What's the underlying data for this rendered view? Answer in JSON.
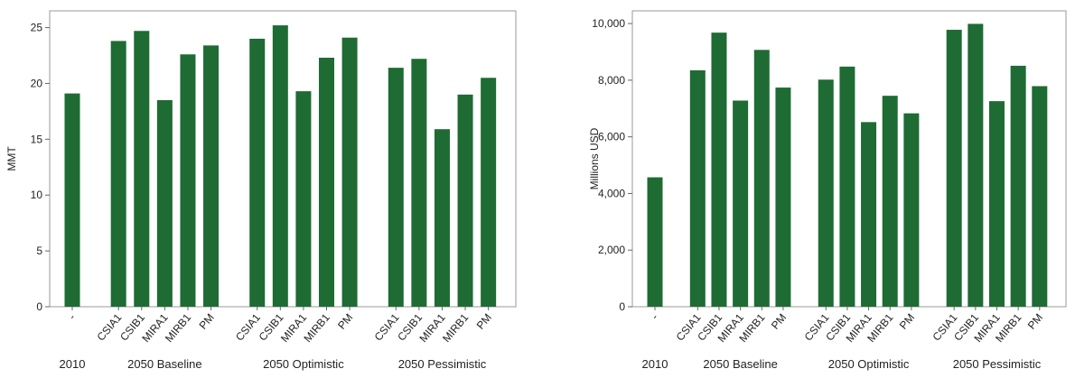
{
  "chart_data": [
    {
      "type": "bar",
      "ylabel": "MMT",
      "color": "#1e6b34",
      "ylim": [
        0,
        26.5
      ],
      "yticks": [
        0,
        5,
        10,
        15,
        20,
        25
      ],
      "groups": [
        {
          "name": "2010",
          "categories": [
            "-"
          ],
          "values": [
            19.1
          ]
        },
        {
          "name": "2050 Baseline",
          "categories": [
            "CSIA1",
            "CSIB1",
            "MIRA1",
            "MIRB1",
            "PM"
          ],
          "values": [
            23.8,
            24.7,
            18.5,
            22.6,
            23.4
          ]
        },
        {
          "name": "2050 Optimistic",
          "categories": [
            "CSIA1",
            "CSIB1",
            "MIRA1",
            "MIRB1",
            "PM"
          ],
          "values": [
            24.0,
            25.2,
            19.3,
            22.3,
            24.1
          ]
        },
        {
          "name": "2050 Pessimistic",
          "categories": [
            "CSIA1",
            "CSIB1",
            "MIRA1",
            "MIRB1",
            "PM"
          ],
          "values": [
            21.4,
            22.2,
            15.9,
            19.0,
            20.5
          ]
        }
      ]
    },
    {
      "type": "bar",
      "ylabel": "Millions USD",
      "color": "#1e6b34",
      "ylim": [
        0,
        10450
      ],
      "yticks": [
        0,
        {
          "value": 2000,
          "label": "2,000"
        },
        {
          "value": 4000,
          "label": "4,000"
        },
        {
          "value": 6000,
          "label": "6,000"
        },
        {
          "value": 8000,
          "label": "8,000"
        },
        {
          "value": 10000,
          "label": "10,000"
        }
      ],
      "groups": [
        {
          "name": "2010",
          "categories": [
            "-"
          ],
          "values": [
            4570
          ]
        },
        {
          "name": "2050 Baseline",
          "categories": [
            "CSIA1",
            "CSIB1",
            "MIRA1",
            "MIRB1",
            "PM"
          ],
          "values": [
            8350,
            9680,
            7280,
            9070,
            7740
          ]
        },
        {
          "name": "2050 Optimistic",
          "categories": [
            "CSIA1",
            "CSIB1",
            "MIRA1",
            "MIRB1",
            "PM"
          ],
          "values": [
            8020,
            8480,
            6520,
            7450,
            6830
          ]
        },
        {
          "name": "2050 Pessimistic",
          "categories": [
            "CSIA1",
            "CSIB1",
            "MIRA1",
            "MIRB1",
            "PM"
          ],
          "values": [
            9780,
            9990,
            7260,
            8510,
            7790
          ]
        }
      ]
    }
  ]
}
